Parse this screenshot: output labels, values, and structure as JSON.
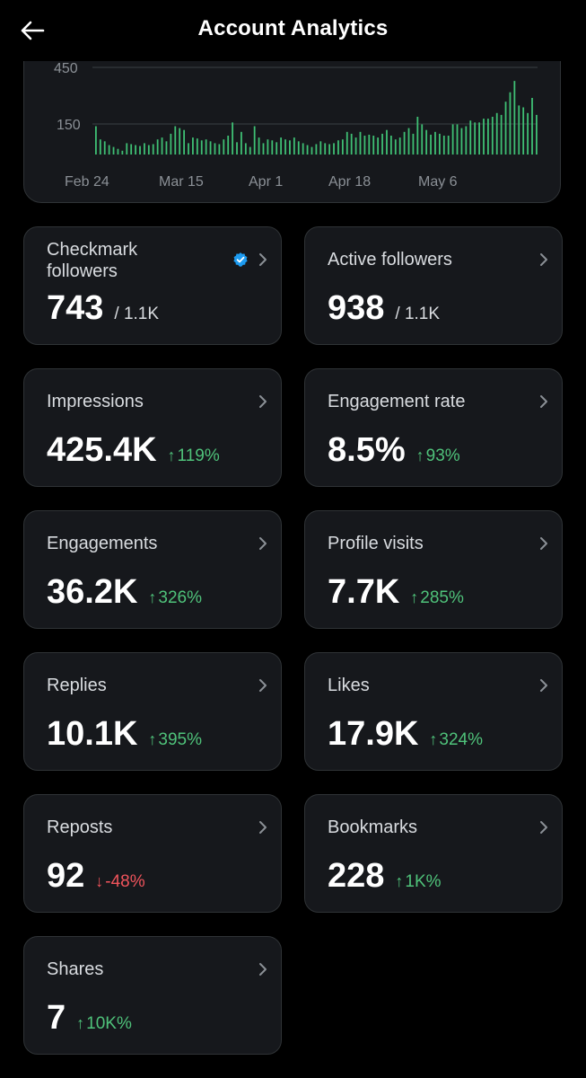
{
  "header": {
    "title": "Account Analytics",
    "back_icon": "arrow-left-icon"
  },
  "chart_data": {
    "type": "bar",
    "color": "#3fbf74",
    "y_ticks": [
      "450",
      "150"
    ],
    "x_ticks": [
      "Feb 24",
      "Mar 15",
      "Apr 1",
      "Apr 18",
      "May 6"
    ],
    "values": [
      150,
      80,
      70,
      50,
      40,
      30,
      20,
      60,
      55,
      50,
      45,
      60,
      50,
      55,
      80,
      90,
      70,
      110,
      150,
      140,
      130,
      60,
      90,
      85,
      75,
      80,
      70,
      60,
      55,
      80,
      100,
      170,
      65,
      120,
      60,
      40,
      150,
      90,
      60,
      80,
      75,
      65,
      90,
      80,
      75,
      90,
      70,
      60,
      50,
      40,
      55,
      70,
      60,
      55,
      60,
      75,
      80,
      120,
      110,
      90,
      120,
      100,
      105,
      100,
      90,
      110,
      130,
      100,
      80,
      90,
      120,
      140,
      110,
      200,
      160,
      130,
      105,
      120,
      110,
      100,
      100,
      160,
      160,
      140,
      150,
      180,
      170,
      170,
      190,
      190,
      200,
      220,
      210,
      280,
      330,
      390,
      260,
      250,
      220,
      300,
      210
    ]
  },
  "cards": [
    {
      "label": "Checkmark followers",
      "value": "743",
      "sub": "/ 1.1K",
      "delta": "",
      "dir": "",
      "verified": true
    },
    {
      "label": "Active followers",
      "value": "938",
      "sub": "/ 1.1K",
      "delta": "",
      "dir": "",
      "verified": false
    },
    {
      "label": "Impressions",
      "value": "425.4K",
      "sub": "",
      "delta": "119%",
      "dir": "up",
      "verified": false
    },
    {
      "label": "Engagement rate",
      "value": "8.5%",
      "sub": "",
      "delta": "93%",
      "dir": "up",
      "verified": false
    },
    {
      "label": "Engagements",
      "value": "36.2K",
      "sub": "",
      "delta": "326%",
      "dir": "up",
      "verified": false
    },
    {
      "label": "Profile visits",
      "value": "7.7K",
      "sub": "",
      "delta": "285%",
      "dir": "up",
      "verified": false
    },
    {
      "label": "Replies",
      "value": "10.1K",
      "sub": "",
      "delta": "395%",
      "dir": "up",
      "verified": false
    },
    {
      "label": "Likes",
      "value": "17.9K",
      "sub": "",
      "delta": "324%",
      "dir": "up",
      "verified": false
    },
    {
      "label": "Reposts",
      "value": "92",
      "sub": "",
      "delta": "-48%",
      "dir": "down",
      "verified": false
    },
    {
      "label": "Bookmarks",
      "value": "228",
      "sub": "",
      "delta": "1K%",
      "dir": "up",
      "verified": false
    },
    {
      "label": "Shares",
      "value": "7",
      "sub": "",
      "delta": "10K%",
      "dir": "up",
      "verified": false
    }
  ],
  "colors": {
    "up": "#4fc27a",
    "down": "#f0545c",
    "verified_badge": "#1d9bf0"
  }
}
